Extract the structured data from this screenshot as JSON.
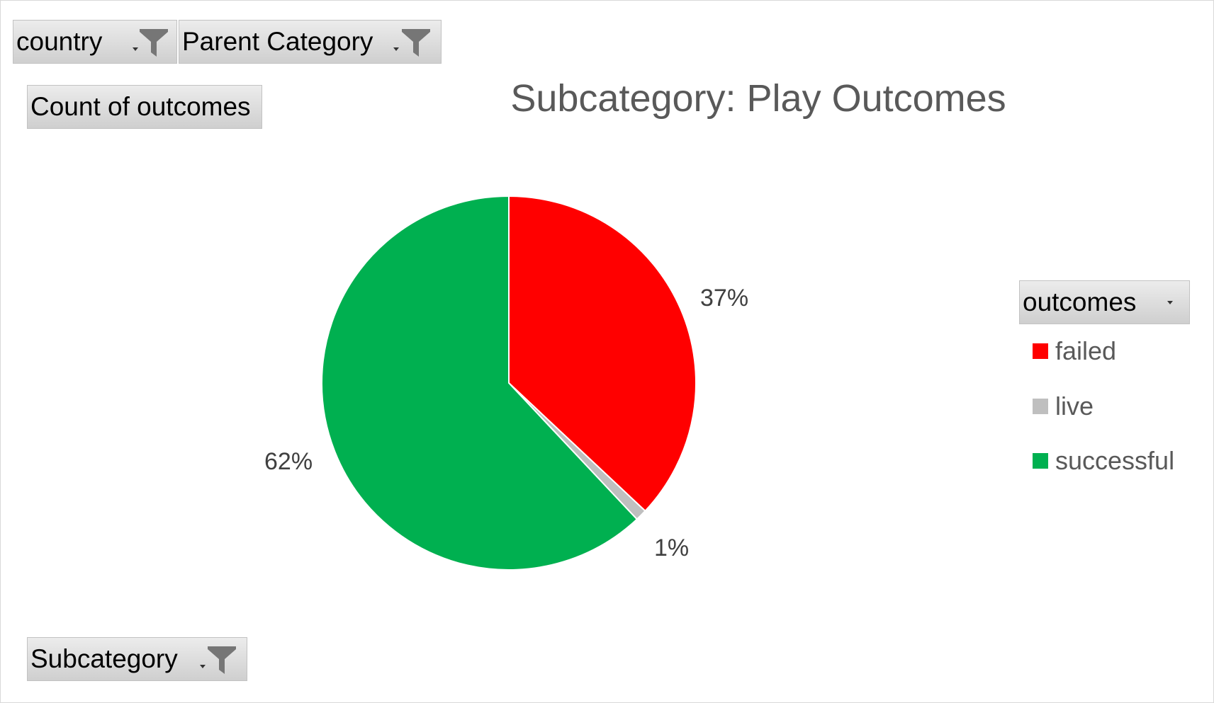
{
  "filters": {
    "country_label": "country",
    "parent_category_label": "Parent Category",
    "count_label": "Count of outcomes",
    "subcategory_label": "Subcategory",
    "outcomes_label": "outcomes"
  },
  "chart_data": {
    "type": "pie",
    "title": "Subcategory: Play Outcomes",
    "categories": [
      "failed",
      "live",
      "successful"
    ],
    "values": [
      37,
      1,
      62
    ],
    "labels": [
      "37%",
      "1%",
      "62%"
    ],
    "colors": [
      "#ff0000",
      "#bfbfbf",
      "#00b050"
    ],
    "legend_position": "right",
    "start_angle_degrees": 0
  }
}
